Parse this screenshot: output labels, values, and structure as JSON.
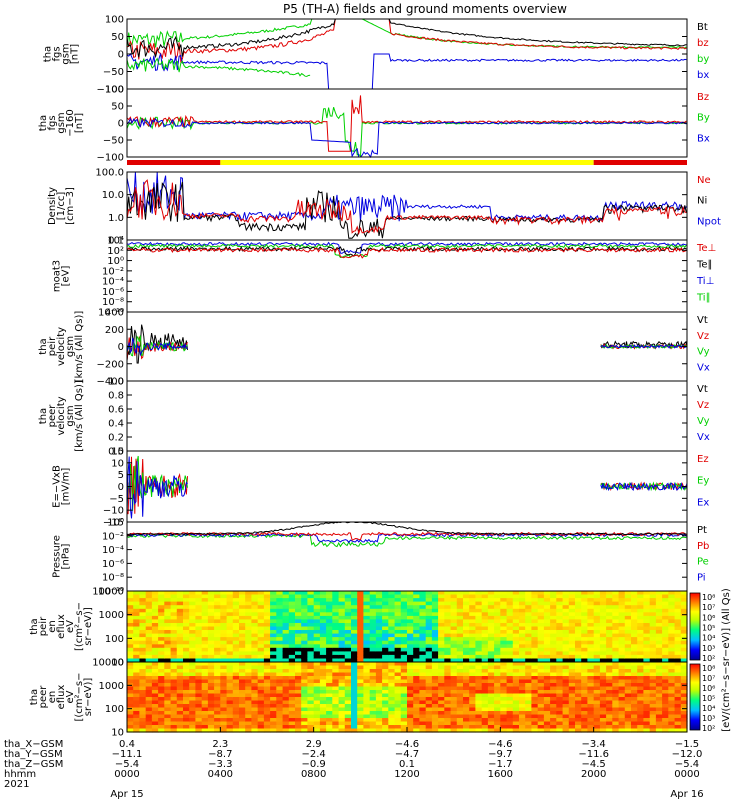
{
  "title": "P5 (TH-A) fields and ground moments overview",
  "colors": {
    "black": "#000000",
    "red": "#e00000",
    "green": "#00d000",
    "blue": "#0000e0",
    "yellow": "#ffff00"
  },
  "chart_data": [
    {
      "type": "line",
      "id": "p1",
      "ylabel": [
        "tha",
        "fgs",
        "gsm",
        "[nT]"
      ],
      "yticks": [
        "100",
        "50",
        "0",
        "−50",
        "−100"
      ],
      "ylim": [
        -100,
        100
      ],
      "legend": [
        {
          "name": "Bt",
          "color": "#000000"
        },
        {
          "name": "bz",
          "color": "#e00000"
        },
        {
          "name": "by",
          "color": "#00d000"
        },
        {
          "name": "bx",
          "color": "#0000e0"
        }
      ]
    },
    {
      "type": "line",
      "id": "p2",
      "ylabel": [
        "tha",
        "fgs",
        "gsm",
        "−160",
        "[nT]"
      ],
      "yticks": [
        "100",
        "50",
        "0",
        "−50",
        "−100"
      ],
      "ylim": [
        -120,
        120
      ],
      "legend": [
        {
          "name": "Bz",
          "color": "#e00000"
        },
        {
          "name": "By",
          "color": "#00d000"
        },
        {
          "name": "Bx",
          "color": "#0000e0"
        }
      ]
    },
    {
      "type": "line",
      "id": "p3",
      "ylabel": [
        "Density",
        "[1/cc]",
        "[cm−3]"
      ],
      "yticks": [
        "100.0",
        "10.0",
        "1.0",
        "0.1"
      ],
      "scale": "log",
      "legend": [
        {
          "name": "Ne",
          "color": "#e00000"
        },
        {
          "name": "Ni",
          "color": "#000000"
        },
        {
          "name": "Npot",
          "color": "#0000e0"
        }
      ]
    },
    {
      "type": "line",
      "id": "p4",
      "ylabel": [
        "moat3",
        "[eV]"
      ],
      "yticks": [
        "10⁴",
        "10²",
        "10⁰",
        "10⁻²",
        "10⁻⁴",
        "10⁻⁶",
        "10⁻⁸",
        "10⁻¹⁰"
      ],
      "scale": "log",
      "legend": [
        {
          "name": "Te⊥",
          "color": "#e00000"
        },
        {
          "name": "Te∥",
          "color": "#000000"
        },
        {
          "name": "Ti⊥",
          "color": "#0000e0"
        },
        {
          "name": "Ti∥",
          "color": "#00d000"
        }
      ]
    },
    {
      "type": "line",
      "id": "p5",
      "ylabel": [
        "tha",
        "peir",
        "velocity",
        "gsm",
        "[km/s (All Qs)]"
      ],
      "yticks": [
        "400",
        "200",
        "0",
        "−200",
        "−400"
      ],
      "ylim": [
        -400,
        400
      ],
      "legend": [
        {
          "name": "Vt",
          "color": "#000000"
        },
        {
          "name": "Vz",
          "color": "#e00000"
        },
        {
          "name": "Vy",
          "color": "#00d000"
        },
        {
          "name": "Vx",
          "color": "#0000e0"
        }
      ]
    },
    {
      "type": "line",
      "id": "p6",
      "ylabel": [
        "tha",
        "peer",
        "velocity",
        "gsm",
        "[km/s (All Qs)]"
      ],
      "yticks": [
        "1.0",
        "0.8",
        "0.6",
        "0.4",
        "0.2",
        "0.0"
      ],
      "ylim": [
        0,
        1
      ],
      "legend": [
        {
          "name": "Vt",
          "color": "#000000"
        },
        {
          "name": "Vz",
          "color": "#e00000"
        },
        {
          "name": "Vy",
          "color": "#00d000"
        },
        {
          "name": "Vx",
          "color": "#0000e0"
        }
      ]
    },
    {
      "type": "line",
      "id": "p7",
      "ylabel": [
        "E=−VxB",
        "[mV/m]"
      ],
      "yticks": [
        "15",
        "10",
        "5",
        "0",
        "−5",
        "−10",
        "−15"
      ],
      "ylim": [
        -15,
        15
      ],
      "legend": [
        {
          "name": "Ez",
          "color": "#e00000"
        },
        {
          "name": "Ey",
          "color": "#00d000"
        },
        {
          "name": "Ex",
          "color": "#0000e0"
        }
      ]
    },
    {
      "type": "line",
      "id": "p8",
      "ylabel": [
        "Pressure",
        "[nPa]"
      ],
      "yticks": [
        "10⁰",
        "10⁻²",
        "10⁻⁴",
        "10⁻⁶",
        "10⁻⁸",
        "10⁻¹⁰"
      ],
      "scale": "log",
      "legend": [
        {
          "name": "Pt",
          "color": "#000000"
        },
        {
          "name": "Pb",
          "color": "#e00000"
        },
        {
          "name": "Pe",
          "color": "#00d000"
        },
        {
          "name": "Pi",
          "color": "#0000e0"
        }
      ]
    },
    {
      "type": "heatmap",
      "id": "p9",
      "ylabel": [
        "tha",
        "peir",
        "en",
        "eflux",
        "eV",
        "[(cm²−s−",
        "sr−eV)]"
      ],
      "yticks": [
        "10000",
        "1000",
        "100",
        "10"
      ],
      "colorbar_ticks": [
        "10⁸",
        "10⁷",
        "10⁶",
        "10⁵",
        "10⁴",
        "10³",
        "10²"
      ]
    },
    {
      "type": "heatmap",
      "id": "p10",
      "ylabel": [
        "tha",
        "peer",
        "en",
        "eflux",
        "eV",
        "[(cm²−s−",
        "sr−eV)]"
      ],
      "yticks": [
        "10000",
        "1000",
        "100",
        "10"
      ],
      "colorbar_ticks": [
        "10⁸",
        "10⁷",
        "10⁶",
        "10⁵",
        "10⁴",
        "10³",
        "10²"
      ]
    }
  ],
  "colorbar_label": "[eV/(cm²−s−sr−eV)] (All Qs)",
  "xaxis": {
    "row_labels": [
      "tha_X−GSM",
      "tha_Y−GSM",
      "tha_Z−GSM",
      "hhmm",
      "2021"
    ],
    "ticks": [
      {
        "x": "0.4",
        "y": "−11.1",
        "z": "−5.4",
        "time": "0000",
        "date": "Apr 15"
      },
      {
        "x": "2.3",
        "y": "−8.7",
        "z": "−3.3",
        "time": "0400",
        "date": ""
      },
      {
        "x": "2.9",
        "y": "−2.4",
        "z": "−0.9",
        "time": "0800",
        "date": ""
      },
      {
        "x": "−4.6",
        "y": "−4.7",
        "z": "0.1",
        "time": "1200",
        "date": ""
      },
      {
        "x": "−4.6",
        "y": "−9.7",
        "z": "−1.7",
        "time": "1600",
        "date": ""
      },
      {
        "x": "−3.4",
        "y": "−11.6",
        "z": "−4.5",
        "time": "2000",
        "date": ""
      },
      {
        "x": "−1.5",
        "y": "−12.0",
        "z": "−5.4",
        "time": "0000",
        "date": "Apr 16"
      }
    ]
  },
  "mode_bar": [
    {
      "from": "0000",
      "to": "0400",
      "color": "#e00000"
    },
    {
      "from": "0400",
      "to": "2000",
      "color": "#ffff00"
    },
    {
      "from": "2000",
      "to": "2400",
      "color": "#e00000"
    }
  ]
}
